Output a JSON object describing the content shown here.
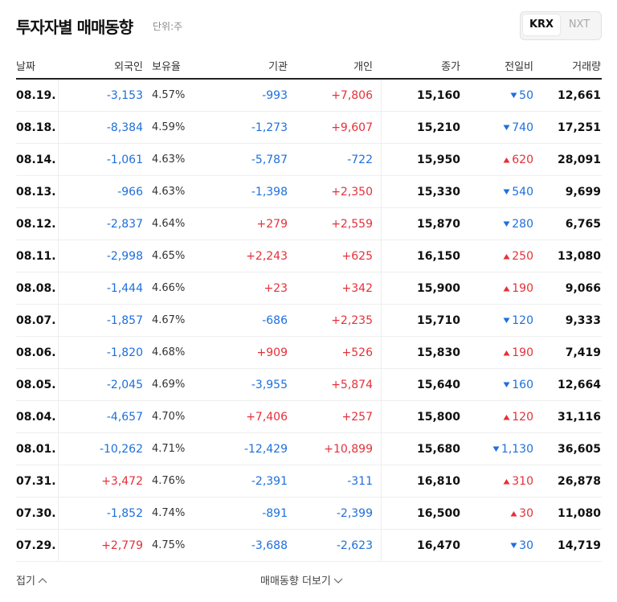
{
  "header": {
    "title": "투자자별 매매동향",
    "unit": "단위:주",
    "tabs": [
      "KRX",
      "NXT"
    ]
  },
  "table": {
    "columns": [
      "날짜",
      "외국인",
      "보유율",
      "기관",
      "개인",
      "종가",
      "전일비",
      "거래량"
    ],
    "rows": [
      [
        "08.19.",
        "-3,153",
        "4.57%",
        "-993",
        "+7,806",
        "15,160",
        "50",
        "12,661"
      ],
      [
        "08.18.",
        "-8,384",
        "4.59%",
        "-1,273",
        "+9,607",
        "15,210",
        "740",
        "17,251"
      ],
      [
        "08.14.",
        "-1,061",
        "4.63%",
        "-5,787",
        "-722",
        "15,950",
        "620",
        "28,091"
      ],
      [
        "08.13.",
        "-966",
        "4.63%",
        "-1,398",
        "+2,350",
        "15,330",
        "540",
        "9,699"
      ],
      [
        "08.12.",
        "-2,837",
        "4.64%",
        "+279",
        "+2,559",
        "15,870",
        "280",
        "6,765"
      ],
      [
        "08.11.",
        "-2,998",
        "4.65%",
        "+2,243",
        "+625",
        "16,150",
        "250",
        "13,080"
      ],
      [
        "08.08.",
        "-1,444",
        "4.66%",
        "+23",
        "+342",
        "15,900",
        "190",
        "9,066"
      ],
      [
        "08.07.",
        "-1,857",
        "4.67%",
        "-686",
        "+2,235",
        "15,710",
        "120",
        "9,333"
      ],
      [
        "08.06.",
        "-1,820",
        "4.68%",
        "+909",
        "+526",
        "15,830",
        "190",
        "7,419"
      ],
      [
        "08.05.",
        "-2,045",
        "4.69%",
        "-3,955",
        "+5,874",
        "15,640",
        "160",
        "12,664"
      ],
      [
        "08.04.",
        "-4,657",
        "4.70%",
        "+7,406",
        "+257",
        "15,800",
        "120",
        "31,116"
      ],
      [
        "08.01.",
        "-10,262",
        "4.71%",
        "-12,429",
        "+10,899",
        "15,680",
        "1,130",
        "36,605"
      ],
      [
        "07.31.",
        "+3,472",
        "4.76%",
        "-2,391",
        "-311",
        "16,810",
        "310",
        "26,878"
      ],
      [
        "07.30.",
        "-1,852",
        "4.74%",
        "-891",
        "-2,399",
        "16,500",
        "30",
        "11,080"
      ],
      [
        "07.29.",
        "+2,779",
        "4.75%",
        "-3,688",
        "-2,623",
        "16,470",
        "30",
        "14,719"
      ]
    ],
    "change_directions": [
      "down",
      "down",
      "up",
      "down",
      "down",
      "up",
      "up",
      "down",
      "up",
      "down",
      "up",
      "down",
      "up",
      "up",
      "down"
    ]
  },
  "footer": {
    "collapse": "접기",
    "more": "매매동향 더보기"
  }
}
